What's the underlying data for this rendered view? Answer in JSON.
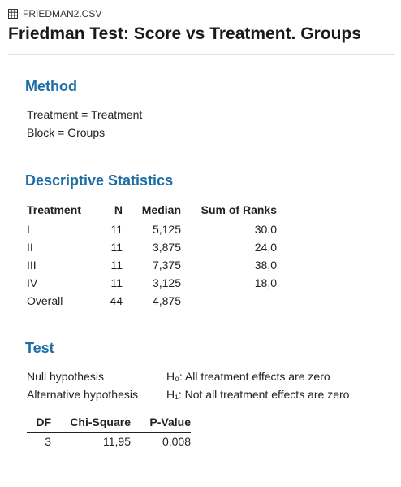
{
  "file": {
    "icon": "grid-icon",
    "name": "FRIEDMAN2.CSV"
  },
  "title": "Friedman Test: Score vs Treatment. Groups",
  "colors": {
    "heading": "#1c6ea4",
    "text": "#222222"
  },
  "method": {
    "heading": "Method",
    "lines": [
      "Treatment = Treatment",
      "Block = Groups"
    ]
  },
  "descriptive": {
    "heading": "Descriptive Statistics",
    "columns": [
      "Treatment",
      "N",
      "Median",
      "Sum of Ranks"
    ],
    "rows": [
      {
        "treatment": "I",
        "n": "11",
        "median": "5,125",
        "sum_of_ranks": "30,0"
      },
      {
        "treatment": "II",
        "n": "11",
        "median": "3,875",
        "sum_of_ranks": "24,0"
      },
      {
        "treatment": "III",
        "n": "11",
        "median": "7,375",
        "sum_of_ranks": "38,0"
      },
      {
        "treatment": "IV",
        "n": "11",
        "median": "3,125",
        "sum_of_ranks": "18,0"
      },
      {
        "treatment": "Overall",
        "n": "44",
        "median": "4,875",
        "sum_of_ranks": ""
      }
    ]
  },
  "test": {
    "heading": "Test",
    "hypotheses": [
      {
        "label": "Null hypothesis",
        "value": "H₀: All treatment effects are zero"
      },
      {
        "label": "Alternative hypothesis",
        "value": "H₁: Not all treatment effects are zero"
      }
    ],
    "columns": [
      "DF",
      "Chi-Square",
      "P-Value"
    ],
    "rows": [
      {
        "df": "3",
        "chi_square": "11,95",
        "p_value": "0,008"
      }
    ]
  }
}
